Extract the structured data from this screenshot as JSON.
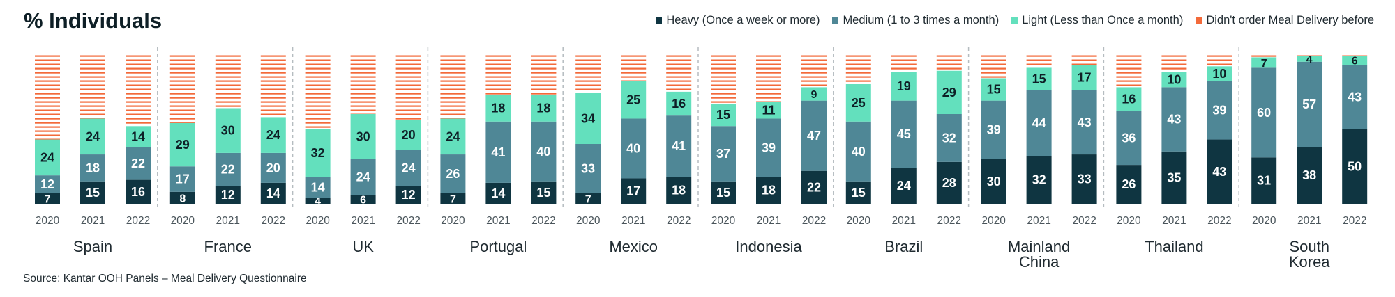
{
  "title": "% Individuals",
  "source": "Source: Kantar OOH Panels – Meal Delivery Questionnaire",
  "colors": {
    "heavy": "#0f3541",
    "medium": "#4f8796",
    "light": "#63e0bd",
    "none": "#f36a3a"
  },
  "legend": [
    {
      "label": "Heavy (Once a week or more)",
      "key": "heavy"
    },
    {
      "label": "Medium (1 to 3 times a month)",
      "key": "medium"
    },
    {
      "label": "Light (Less than Once a month)",
      "key": "light"
    },
    {
      "label": "Didn't order Meal Delivery before",
      "key": "none"
    }
  ],
  "chart_data": {
    "type": "bar",
    "stacked": true,
    "ylim": [
      0,
      100
    ],
    "years": [
      "2020",
      "2021",
      "2022"
    ],
    "series_order": [
      "heavy",
      "medium",
      "light",
      "none"
    ],
    "countries": [
      {
        "name": "Spain",
        "bars": [
          {
            "year": "2020",
            "heavy": 7,
            "medium": 12,
            "light": 24
          },
          {
            "year": "2021",
            "heavy": 15,
            "medium": 18,
            "light": 24
          },
          {
            "year": "2022",
            "heavy": 16,
            "medium": 22,
            "light": 14
          }
        ]
      },
      {
        "name": "France",
        "bars": [
          {
            "year": "2020",
            "heavy": 8,
            "medium": 17,
            "light": 29
          },
          {
            "year": "2021",
            "heavy": 12,
            "medium": 22,
            "light": 30
          },
          {
            "year": "2022",
            "heavy": 14,
            "medium": 20,
            "light": 24
          }
        ]
      },
      {
        "name": "UK",
        "bars": [
          {
            "year": "2020",
            "heavy": 4,
            "medium": 14,
            "light": 32
          },
          {
            "year": "2021",
            "heavy": 6,
            "medium": 24,
            "light": 30
          },
          {
            "year": "2022",
            "heavy": 12,
            "medium": 24,
            "light": 20
          }
        ]
      },
      {
        "name": "Portugal",
        "bars": [
          {
            "year": "2020",
            "heavy": 7,
            "medium": 26,
            "light": 24
          },
          {
            "year": "2021",
            "heavy": 14,
            "medium": 41,
            "light": 18
          },
          {
            "year": "2022",
            "heavy": 15,
            "medium": 40,
            "light": 18
          }
        ]
      },
      {
        "name": "Mexico",
        "bars": [
          {
            "year": "2020",
            "heavy": 7,
            "medium": 33,
            "light": 34
          },
          {
            "year": "2021",
            "heavy": 17,
            "medium": 40,
            "light": 25
          },
          {
            "year": "2022",
            "heavy": 18,
            "medium": 41,
            "light": 16
          }
        ]
      },
      {
        "name": "Indonesia",
        "bars": [
          {
            "year": "2020",
            "heavy": 15,
            "medium": 37,
            "light": 15
          },
          {
            "year": "2021",
            "heavy": 18,
            "medium": 39,
            "light": 11
          },
          {
            "year": "2022",
            "heavy": 22,
            "medium": 47,
            "light": 9
          }
        ]
      },
      {
        "name": "Brazil",
        "bars": [
          {
            "year": "2020",
            "heavy": 15,
            "medium": 40,
            "light": 25
          },
          {
            "year": "2021",
            "heavy": 24,
            "medium": 45,
            "light": 19
          },
          {
            "year": "2022",
            "heavy": 28,
            "medium": 32,
            "light": 29
          }
        ]
      },
      {
        "name": "Mainland China",
        "bars": [
          {
            "year": "2020",
            "heavy": 30,
            "medium": 39,
            "light": 15
          },
          {
            "year": "2021",
            "heavy": 32,
            "medium": 44,
            "light": 15
          },
          {
            "year": "2022",
            "heavy": 33,
            "medium": 43,
            "light": 17
          }
        ]
      },
      {
        "name": "Thailand",
        "bars": [
          {
            "year": "2020",
            "heavy": 26,
            "medium": 36,
            "light": 16
          },
          {
            "year": "2021",
            "heavy": 35,
            "medium": 43,
            "light": 10
          },
          {
            "year": "2022",
            "heavy": 43,
            "medium": 39,
            "light": 10
          }
        ]
      },
      {
        "name": "South Korea",
        "bars": [
          {
            "year": "2020",
            "heavy": 31,
            "medium": 60,
            "light": 7
          },
          {
            "year": "2021",
            "heavy": 38,
            "medium": 57,
            "light": 4
          },
          {
            "year": "2022",
            "heavy": 50,
            "medium": 43,
            "light": 6
          }
        ]
      }
    ]
  }
}
